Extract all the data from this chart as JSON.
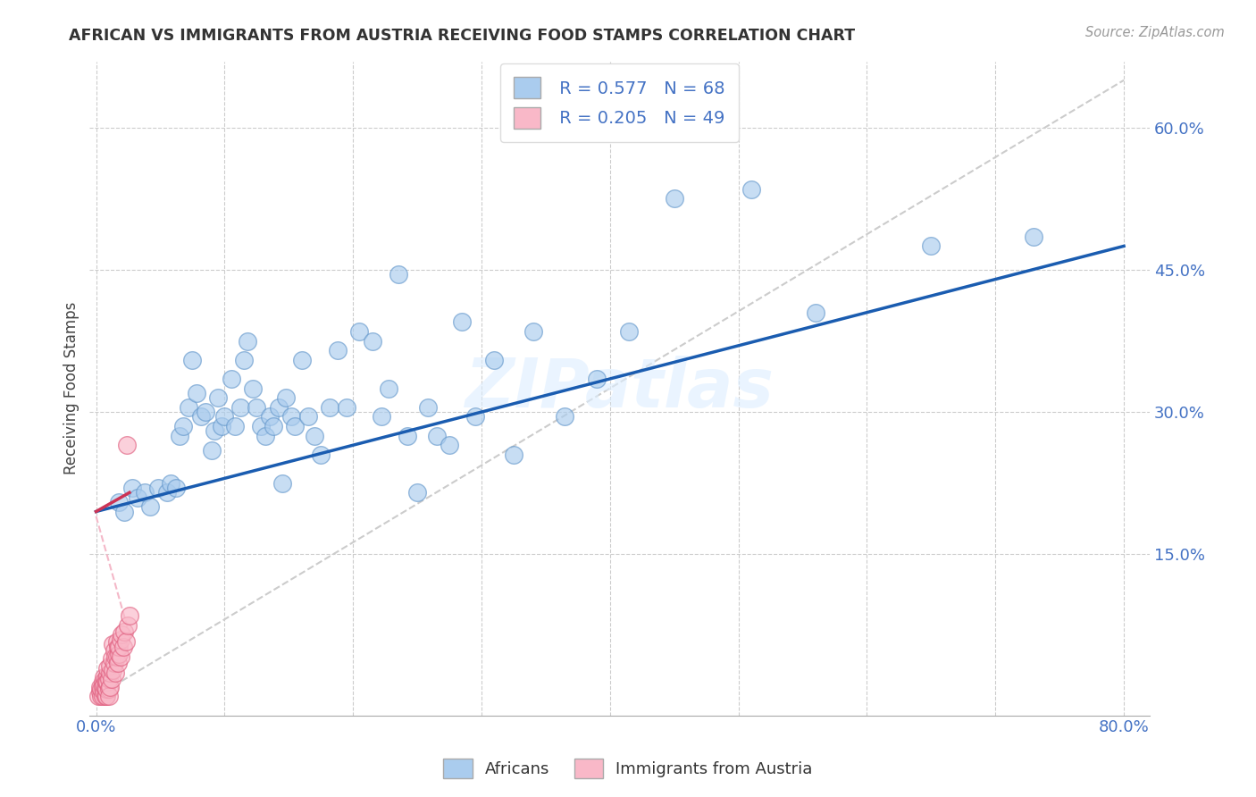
{
  "title": "AFRICAN VS IMMIGRANTS FROM AUSTRIA RECEIVING FOOD STAMPS CORRELATION CHART",
  "source": "Source: ZipAtlas.com",
  "ylabel": "Receiving Food Stamps",
  "xlim": [
    -0.005,
    0.82
  ],
  "ylim": [
    -0.02,
    0.67
  ],
  "xticks": [
    0.0,
    0.1,
    0.2,
    0.3,
    0.4,
    0.5,
    0.6,
    0.7,
    0.8
  ],
  "xticklabels_show": [
    "0.0%",
    "80.0%"
  ],
  "xticklabels_pos": [
    0.0,
    0.8
  ],
  "yticks": [
    0.15,
    0.3,
    0.45,
    0.6
  ],
  "yticklabels": [
    "15.0%",
    "30.0%",
    "45.0%",
    "60.0%"
  ],
  "african_color": "#aaccee",
  "african_edge_color": "#6699cc",
  "austria_color": "#f9b8c8",
  "austria_edge_color": "#e06080",
  "blue_line_color": "#1a5cb0",
  "pink_line_color": "#cc3355",
  "watermark_text": "ZIPatlas",
  "legend_R_african": "R = 0.577",
  "legend_N_african": "N = 68",
  "legend_R_austria": "R = 0.205",
  "legend_N_austria": "N = 49",
  "africans_label": "Africans",
  "austria_label": "Immigrants from Austria",
  "african_x": [
    0.018,
    0.022,
    0.028,
    0.032,
    0.038,
    0.042,
    0.048,
    0.055,
    0.058,
    0.062,
    0.065,
    0.068,
    0.072,
    0.075,
    0.078,
    0.082,
    0.085,
    0.09,
    0.092,
    0.095,
    0.098,
    0.1,
    0.105,
    0.108,
    0.112,
    0.115,
    0.118,
    0.122,
    0.125,
    0.128,
    0.132,
    0.135,
    0.138,
    0.142,
    0.145,
    0.148,
    0.152,
    0.155,
    0.16,
    0.165,
    0.17,
    0.175,
    0.182,
    0.188,
    0.195,
    0.205,
    0.215,
    0.222,
    0.228,
    0.235,
    0.242,
    0.25,
    0.258,
    0.265,
    0.275,
    0.285,
    0.295,
    0.31,
    0.325,
    0.34,
    0.365,
    0.39,
    0.415,
    0.45,
    0.51,
    0.56,
    0.65,
    0.73
  ],
  "african_y": [
    0.205,
    0.195,
    0.22,
    0.21,
    0.215,
    0.2,
    0.22,
    0.215,
    0.225,
    0.22,
    0.275,
    0.285,
    0.305,
    0.355,
    0.32,
    0.295,
    0.3,
    0.26,
    0.28,
    0.315,
    0.285,
    0.295,
    0.335,
    0.285,
    0.305,
    0.355,
    0.375,
    0.325,
    0.305,
    0.285,
    0.275,
    0.295,
    0.285,
    0.305,
    0.225,
    0.315,
    0.295,
    0.285,
    0.355,
    0.295,
    0.275,
    0.255,
    0.305,
    0.365,
    0.305,
    0.385,
    0.375,
    0.295,
    0.325,
    0.445,
    0.275,
    0.215,
    0.305,
    0.275,
    0.265,
    0.395,
    0.295,
    0.355,
    0.255,
    0.385,
    0.295,
    0.335,
    0.385,
    0.525,
    0.535,
    0.405,
    0.475,
    0.485
  ],
  "austria_x": [
    0.002,
    0.003,
    0.003,
    0.004,
    0.004,
    0.005,
    0.005,
    0.005,
    0.006,
    0.006,
    0.006,
    0.007,
    0.007,
    0.007,
    0.008,
    0.008,
    0.008,
    0.009,
    0.009,
    0.009,
    0.01,
    0.01,
    0.01,
    0.011,
    0.011,
    0.011,
    0.012,
    0.012,
    0.013,
    0.013,
    0.014,
    0.014,
    0.015,
    0.015,
    0.016,
    0.016,
    0.017,
    0.017,
    0.018,
    0.018,
    0.019,
    0.019,
    0.02,
    0.021,
    0.022,
    0.023,
    0.024,
    0.025,
    0.026
  ],
  "austria_y": [
    0.0,
    0.005,
    0.01,
    0.0,
    0.008,
    0.015,
    0.0,
    0.01,
    0.005,
    0.02,
    0.012,
    0.0,
    0.01,
    0.018,
    0.0,
    0.008,
    0.015,
    0.022,
    0.03,
    0.015,
    0.008,
    0.0,
    0.018,
    0.01,
    0.025,
    0.032,
    0.04,
    0.018,
    0.028,
    0.055,
    0.035,
    0.048,
    0.042,
    0.025,
    0.058,
    0.042,
    0.052,
    0.035,
    0.045,
    0.052,
    0.06,
    0.042,
    0.065,
    0.052,
    0.068,
    0.058,
    0.265,
    0.075,
    0.085
  ],
  "blue_regression_x0": 0.0,
  "blue_regression_y0": 0.195,
  "blue_regression_x1": 0.8,
  "blue_regression_y1": 0.475,
  "pink_regression_x0": 0.0,
  "pink_regression_y0": 0.195,
  "pink_regression_x1": 0.026,
  "pink_regression_y1": 0.215
}
